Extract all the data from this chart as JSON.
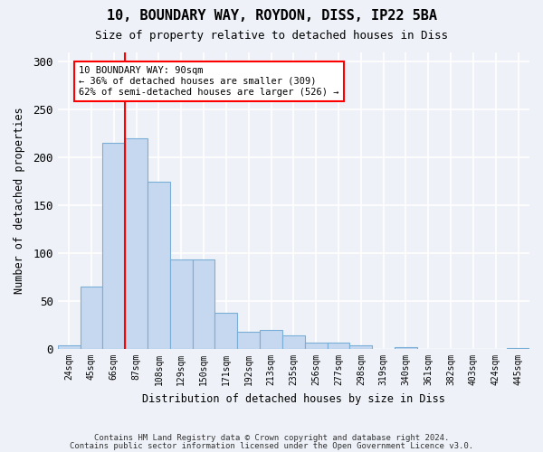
{
  "title": "10, BOUNDARY WAY, ROYDON, DISS, IP22 5BA",
  "subtitle": "Size of property relative to detached houses in Diss",
  "xlabel": "Distribution of detached houses by size in Diss",
  "ylabel": "Number of detached properties",
  "bar_color": "#c5d8f0",
  "bar_edge_color": "#7aaed6",
  "bins": [
    "24sqm",
    "45sqm",
    "66sqm",
    "87sqm",
    "108sqm",
    "129sqm",
    "150sqm",
    "171sqm",
    "192sqm",
    "213sqm",
    "235sqm",
    "256sqm",
    "277sqm",
    "298sqm",
    "319sqm",
    "340sqm",
    "361sqm",
    "382sqm",
    "403sqm",
    "424sqm",
    "445sqm"
  ],
  "values": [
    4,
    65,
    215,
    220,
    175,
    93,
    93,
    38,
    18,
    20,
    14,
    7,
    7,
    4,
    0,
    2,
    0,
    0,
    0,
    0,
    1
  ],
  "vline_x": 3.0,
  "vline_color": "red",
  "annotation_text": "10 BOUNDARY WAY: 90sqm\n← 36% of detached houses are smaller (309)\n62% of semi-detached houses are larger (526) →",
  "annotation_box_color": "white",
  "annotation_box_edge_color": "red",
  "ylim": [
    0,
    310
  ],
  "yticks": [
    0,
    50,
    100,
    150,
    200,
    250,
    300
  ],
  "footer1": "Contains HM Land Registry data © Crown copyright and database right 2024.",
  "footer2": "Contains public sector information licensed under the Open Government Licence v3.0.",
  "background_color": "#eef2f8",
  "grid_color": "white"
}
